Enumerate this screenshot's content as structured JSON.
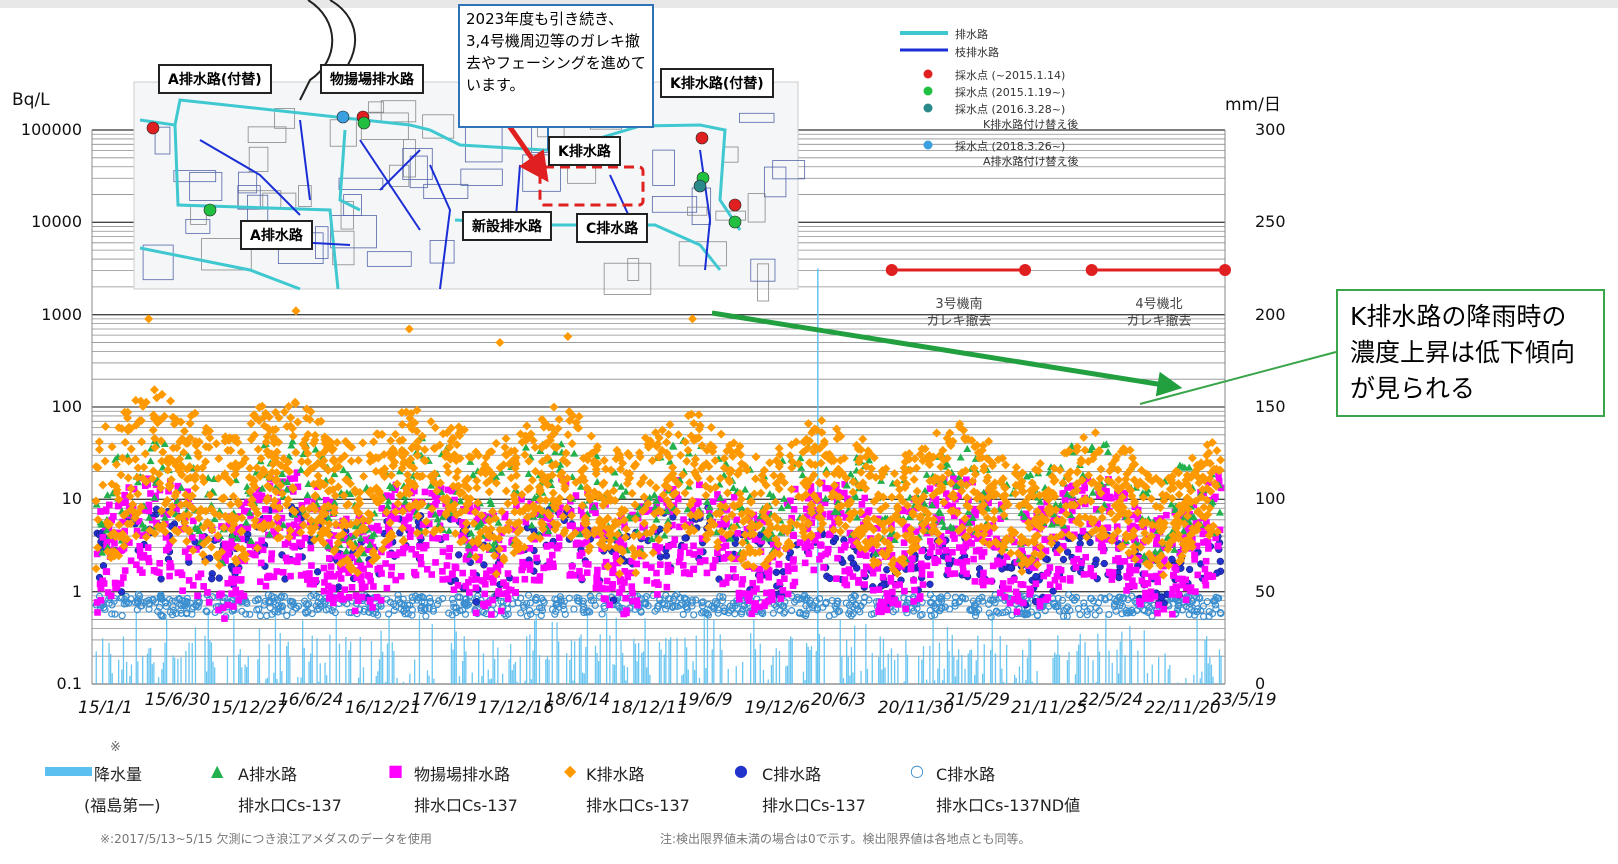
{
  "chart_data": {
    "type": "scatter",
    "y_left": {
      "unit": "Bq/L",
      "scale": "log",
      "ticks": [
        "100000",
        "10000",
        "1000",
        "100",
        "10",
        "1",
        "0.1"
      ],
      "ylim": [
        0.1,
        100000
      ]
    },
    "y_right": {
      "unit": "mm/日",
      "ticks": [
        "300",
        "250",
        "200",
        "150",
        "100",
        "50",
        "0"
      ],
      "ylim": [
        0,
        300
      ]
    },
    "x_ticks": [
      "15/1/1",
      "15/6/30",
      "15/12/27",
      "16/6/24",
      "16/12/21",
      "17/6/19",
      "17/12/16",
      "18/6/14",
      "18/12/11",
      "19/6/9",
      "19/12/6",
      "20/6/3",
      "20/11/30",
      "21/5/29",
      "21/11/25",
      "22/5/24",
      "22/11/20",
      "23/5/19"
    ],
    "xlim": [
      "15/1/1",
      "23/5/19"
    ],
    "series": [
      {
        "name": "降水量",
        "name2": "(福島第一)",
        "color": "#5bc0f0",
        "marker": "bar",
        "typical_mm_per_day": [
          0,
          35
        ],
        "peak_mm_per_day": 225
      },
      {
        "name": "A排水路",
        "name2": "排水口Cs-137",
        "color": "#22b14c",
        "marker": "triangle",
        "typical_bq_per_l": [
          2,
          30
        ]
      },
      {
        "name": "物揚場排水路",
        "name2": "排水口Cs-137",
        "color": "#ff00ff",
        "marker": "square",
        "typical_bq_per_l": [
          1,
          15
        ]
      },
      {
        "name": "K排水路",
        "name2": "排水口Cs-137",
        "color": "#ff9900",
        "marker": "diamond",
        "typical_bq_per_l": [
          5,
          100
        ],
        "peak_bq_per_l": 1100
      },
      {
        "name": "C排水路",
        "name2": "排水口Cs-137",
        "color": "#2233cc",
        "marker": "circle",
        "typical_bq_per_l": [
          0.6,
          5
        ]
      },
      {
        "name": "C排水路",
        "name2": "排水口Cs-137ND値",
        "color": "#3a8fd0",
        "marker": "open-circle",
        "typical_bq_per_l": [
          0.5,
          1
        ]
      }
    ],
    "debris_removal": [
      {
        "label": "3号機南",
        "label2": "ガレキ撤去",
        "start": "20/11/30",
        "end": "21/11/25"
      },
      {
        "label": "4号機北",
        "label2": "ガレキ撤去",
        "start": "22/5/24",
        "end": "23/5/19"
      }
    ],
    "grid": true
  },
  "map": {
    "labels": {
      "a_sub": "A排水路(付替)",
      "butsu": "物揚場排水路",
      "k_sub": "K排水路(付替)",
      "k_main": "K排水路",
      "a_main": "A排水路",
      "new": "新設排水路",
      "c_main": "C排水路"
    },
    "legend": [
      "排水路",
      "枝排水路",
      "採水点 (~2015.1.14)",
      "採水点 (2015.1.19~)",
      "採水点 (2016.3.28~)",
      "K排水路付け替え後",
      "採水点 (2018.3.26~)",
      "A排水路付け替え後"
    ],
    "colors": {
      "main_channel": "#40c8d0",
      "branch_channel": "#1a2ed6",
      "dot_red": "#e02020",
      "dot_green": "#22c040",
      "dot_teal": "#2a8a8a",
      "dot_blue": "#3aa0e0"
    }
  },
  "callouts": {
    "top": "2023年度も引き続き、3,4号機周辺等のガレキ撤去やフェーシングを進めています。",
    "right": "K排水路の降雨時の濃度上昇は低下傾向が見られる"
  },
  "legend_mark": "※",
  "footnotes": {
    "left": "※:2017/5/13~5/15 欠測につき浪江アメダスのデータを使用",
    "right": "注:検出限界値未満の場合は0で示す。検出限界値は各地点とも同等。"
  },
  "colors": {
    "grid": "#333333",
    "callout_blue": "#2e73b8",
    "callout_green": "#3aa54a",
    "arrow_red": "#e02020",
    "arrow_green": "#22a040"
  }
}
